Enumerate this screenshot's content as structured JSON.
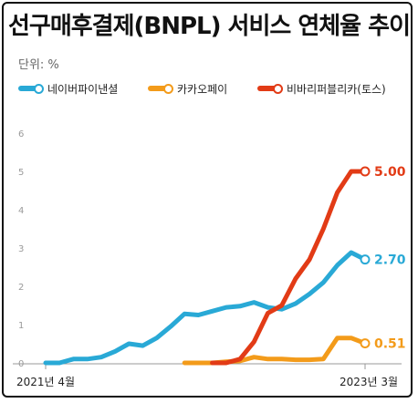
{
  "title": "선구매후결제(BNPL) 서비스 연체율 추이",
  "unit_label": "단위: %",
  "colors": {
    "naver": "#29a9d6",
    "kakao": "#f39b1a",
    "toss": "#e23b16",
    "axis": "#999999",
    "tick": "#9a9a9a"
  },
  "chart_data": {
    "type": "line",
    "title": "선구매후결제(BNPL) 서비스 연체율 추이",
    "ylabel": "단위: %",
    "ylim": [
      0,
      6
    ],
    "yticks": [
      "0",
      "1",
      "2",
      "3",
      "4",
      "5",
      "6"
    ],
    "xlabels": {
      "start": "2021년 4월",
      "end": "2023년 3월"
    },
    "grid": false,
    "legend": "top-left",
    "series": [
      {
        "name": "네이버파이낸셜",
        "color": "#29a9d6",
        "x": [
          0,
          1,
          2,
          3,
          4,
          5,
          6,
          7,
          8,
          9,
          10,
          11,
          12,
          13,
          14,
          15,
          16,
          17,
          18,
          19,
          20,
          21,
          22,
          23
        ],
        "values": [
          0.0,
          0.0,
          0.1,
          0.1,
          0.15,
          0.3,
          0.5,
          0.45,
          0.65,
          0.95,
          1.28,
          1.25,
          1.35,
          1.45,
          1.48,
          1.58,
          1.45,
          1.4,
          1.55,
          1.8,
          2.1,
          2.55,
          2.88,
          2.7
        ],
        "end_label": "2.70"
      },
      {
        "name": "카카오페이",
        "color": "#f39b1a",
        "x": [
          10,
          11,
          12,
          13,
          14,
          15,
          16,
          17,
          18,
          19,
          20,
          21,
          22,
          23
        ],
        "values": [
          0.0,
          0.0,
          0.0,
          0.03,
          0.05,
          0.15,
          0.1,
          0.1,
          0.08,
          0.08,
          0.1,
          0.65,
          0.65,
          0.51
        ],
        "end_label": "0.51"
      },
      {
        "name": "비바리퍼블리카(토스)",
        "color": "#e23b16",
        "x": [
          12,
          13,
          14,
          15,
          16,
          17,
          18,
          19,
          20,
          21,
          22,
          23
        ],
        "values": [
          0.0,
          0.0,
          0.1,
          0.55,
          1.3,
          1.5,
          2.2,
          2.7,
          3.5,
          4.45,
          5.0,
          5.0
        ],
        "end_label": "5.00"
      }
    ]
  }
}
